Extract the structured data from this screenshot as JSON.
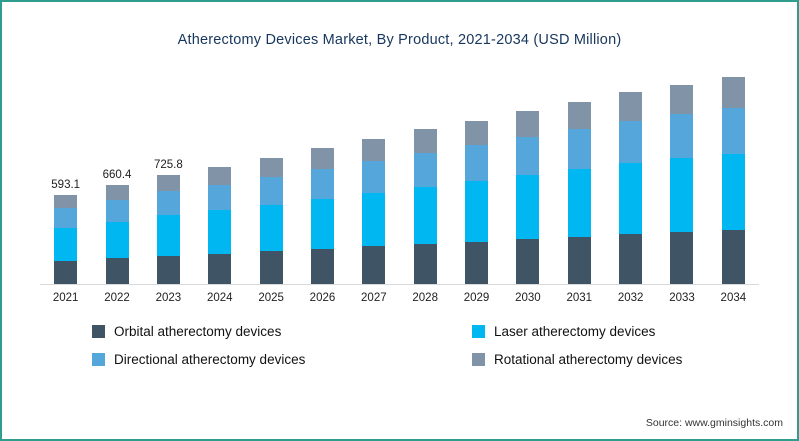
{
  "title": "Atherectomy Devices Market, By Product, 2021-2034 (USD Million)",
  "source": "Source: www.gminsights.com",
  "legend": [
    {
      "label": "Orbital atherectomy devices",
      "color": "#3f5565"
    },
    {
      "label": "Laser atherectomy devices",
      "color": "#00b7f1"
    },
    {
      "label": "Directional atherectomy devices",
      "color": "#55a6db"
    },
    {
      "label": "Rotational atherectomy devices",
      "color": "#8193a7"
    }
  ],
  "chart_data": {
    "type": "bar",
    "stacked": true,
    "title": "Atherectomy Devices Market, By Product, 2021-2034 (USD Million)",
    "xlabel": "",
    "ylabel": "USD Million",
    "grid": false,
    "legend_position": "bottom",
    "categories": [
      "2021",
      "2022",
      "2023",
      "2024",
      "2025",
      "2026",
      "2027",
      "2028",
      "2029",
      "2030",
      "2031",
      "2032",
      "2033",
      "2034"
    ],
    "series": [
      {
        "name": "Orbital atherectomy devices",
        "color": "#3f5565",
        "values": [
          154.2,
          171.7,
          188.7,
          202.8,
          218.4,
          235.3,
          250.9,
          267.8,
          283.4,
          300.3,
          315.9,
          332.8,
          345.8,
          358.8
        ]
      },
      {
        "name": "Laser atherectomy devices",
        "color": "#00b7f1",
        "values": [
          219.4,
          244.3,
          268.5,
          288.6,
          310.8,
          334.9,
          357.1,
          381.1,
          403.3,
          427.4,
          449.6,
          473.6,
          492.1,
          510.6
        ]
      },
      {
        "name": "Directional atherectomy devices",
        "color": "#55a6db",
        "values": [
          130.5,
          145.3,
          159.7,
          171.6,
          184.8,
          199.1,
          212.3,
          226.6,
          239.8,
          254.1,
          267.3,
          281.6,
          292.6,
          303.6
        ]
      },
      {
        "name": "Rotational atherectomy devices",
        "color": "#8193a7",
        "values": [
          89.0,
          99.1,
          108.9,
          117.0,
          126.0,
          135.7,
          144.7,
          154.5,
          163.5,
          173.2,
          182.2,
          192.0,
          199.5,
          207.0
        ]
      }
    ],
    "totals": [
      593.1,
      660.4,
      725.8,
      780,
      840,
      905,
      965,
      1030,
      1090,
      1155,
      1215,
      1280,
      1330,
      1380
    ],
    "data_labels": {
      "2021": "593.1",
      "2022": "660.4",
      "2023": "725.8"
    }
  }
}
